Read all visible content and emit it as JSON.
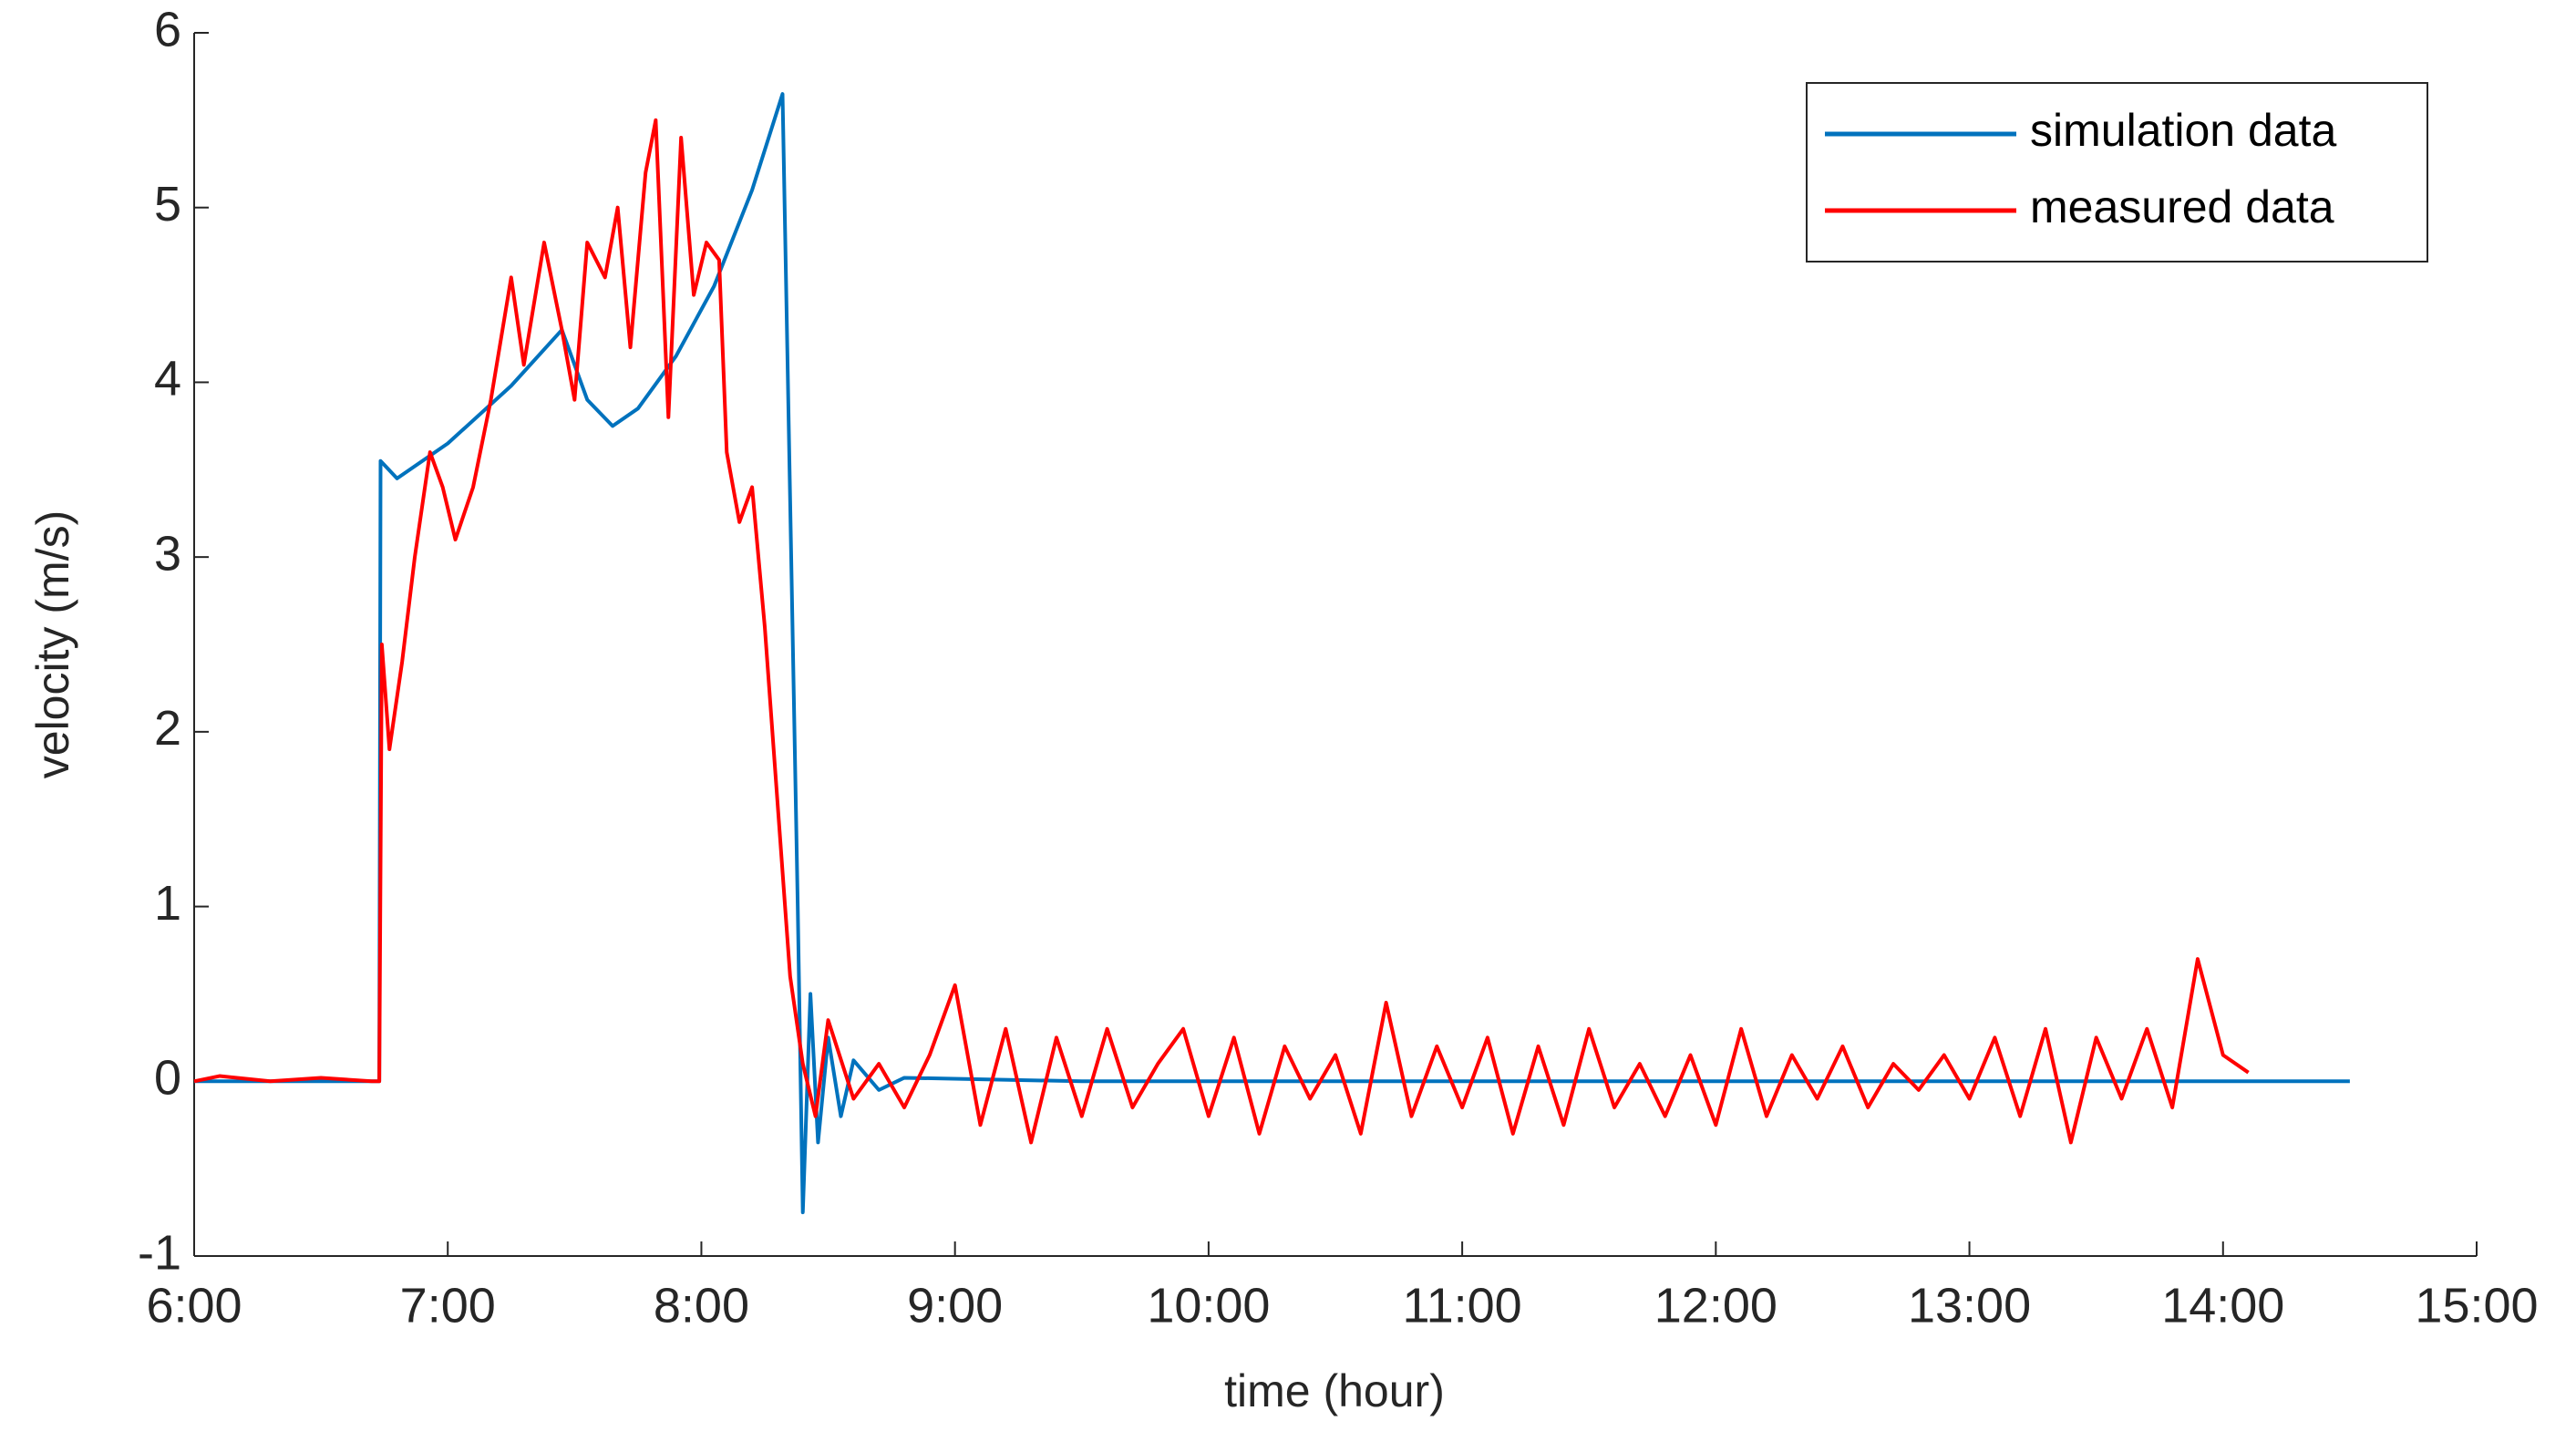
{
  "chart_data": {
    "type": "line",
    "xlabel": "time (hour)",
    "ylabel": "velocity (m/s)",
    "xlim": [
      6,
      15
    ],
    "ylim": [
      -1,
      6
    ],
    "xticks": [
      {
        "value": 6,
        "label": "6:00"
      },
      {
        "value": 7,
        "label": "7:00"
      },
      {
        "value": 8,
        "label": "8:00"
      },
      {
        "value": 9,
        "label": "9:00"
      },
      {
        "value": 10,
        "label": "10:00"
      },
      {
        "value": 11,
        "label": "11:00"
      },
      {
        "value": 12,
        "label": "12:00"
      },
      {
        "value": 13,
        "label": "13:00"
      },
      {
        "value": 14,
        "label": "14:00"
      },
      {
        "value": 15,
        "label": "15:00"
      }
    ],
    "yticks": [
      -1,
      0,
      1,
      2,
      3,
      4,
      5,
      6
    ],
    "legend": "northeast",
    "series": [
      {
        "name": "simulation data",
        "color": "#0072bd",
        "x": [
          6.0,
          6.73,
          6.735,
          6.8,
          7.0,
          7.25,
          7.45,
          7.55,
          7.65,
          7.75,
          7.9,
          8.05,
          8.2,
          8.32,
          8.38,
          8.4,
          8.43,
          8.46,
          8.5,
          8.55,
          8.6,
          8.7,
          8.8,
          9.5,
          11.0,
          13.0,
          14.5
        ],
        "values": [
          0,
          0,
          3.55,
          3.45,
          3.65,
          3.98,
          4.3,
          3.9,
          3.75,
          3.85,
          4.15,
          4.55,
          5.1,
          5.65,
          1.0,
          -0.75,
          0.5,
          -0.35,
          0.25,
          -0.2,
          0.12,
          -0.05,
          0.02,
          0,
          0,
          0,
          0
        ]
      },
      {
        "name": "measured data",
        "color": "#ff0000",
        "x": [
          6.0,
          6.1,
          6.3,
          6.5,
          6.7,
          6.73,
          6.74,
          6.77,
          6.82,
          6.87,
          6.93,
          6.98,
          7.03,
          7.1,
          7.17,
          7.25,
          7.3,
          7.38,
          7.45,
          7.5,
          7.55,
          7.62,
          7.67,
          7.72,
          7.78,
          7.82,
          7.87,
          7.92,
          7.97,
          8.02,
          8.07,
          8.1,
          8.15,
          8.2,
          8.25,
          8.3,
          8.35,
          8.4,
          8.45,
          8.5,
          8.6,
          8.7,
          8.8,
          8.9,
          9.0,
          9.1,
          9.2,
          9.3,
          9.4,
          9.5,
          9.6,
          9.7,
          9.8,
          9.9,
          10.0,
          10.1,
          10.2,
          10.3,
          10.4,
          10.5,
          10.6,
          10.7,
          10.8,
          10.9,
          11.0,
          11.1,
          11.2,
          11.3,
          11.4,
          11.5,
          11.6,
          11.7,
          11.8,
          11.9,
          12.0,
          12.1,
          12.2,
          12.3,
          12.4,
          12.5,
          12.6,
          12.7,
          12.8,
          12.9,
          13.0,
          13.1,
          13.2,
          13.3,
          13.4,
          13.5,
          13.6,
          13.7,
          13.8,
          13.9,
          14.0,
          14.1
        ],
        "values": [
          0,
          0.03,
          0,
          0.02,
          0,
          0,
          2.5,
          1.9,
          2.4,
          3.0,
          3.6,
          3.4,
          3.1,
          3.4,
          3.9,
          4.6,
          4.1,
          4.8,
          4.3,
          3.9,
          4.8,
          4.6,
          5.0,
          4.2,
          5.2,
          5.5,
          3.8,
          5.4,
          4.5,
          4.8,
          4.7,
          3.6,
          3.2,
          3.4,
          2.6,
          1.6,
          0.6,
          0.1,
          -0.2,
          0.35,
          -0.1,
          0.1,
          -0.15,
          0.15,
          0.55,
          -0.25,
          0.3,
          -0.35,
          0.25,
          -0.2,
          0.3,
          -0.15,
          0.1,
          0.3,
          -0.2,
          0.25,
          -0.3,
          0.2,
          -0.1,
          0.15,
          -0.3,
          0.45,
          -0.2,
          0.2,
          -0.15,
          0.25,
          -0.3,
          0.2,
          -0.25,
          0.3,
          -0.15,
          0.1,
          -0.2,
          0.15,
          -0.25,
          0.3,
          -0.2,
          0.15,
          -0.1,
          0.2,
          -0.15,
          0.1,
          -0.05,
          0.15,
          -0.1,
          0.25,
          -0.2,
          0.3,
          -0.35,
          0.25,
          -0.1,
          0.3,
          -0.15,
          0.7,
          0.15,
          0.05
        ]
      }
    ]
  }
}
